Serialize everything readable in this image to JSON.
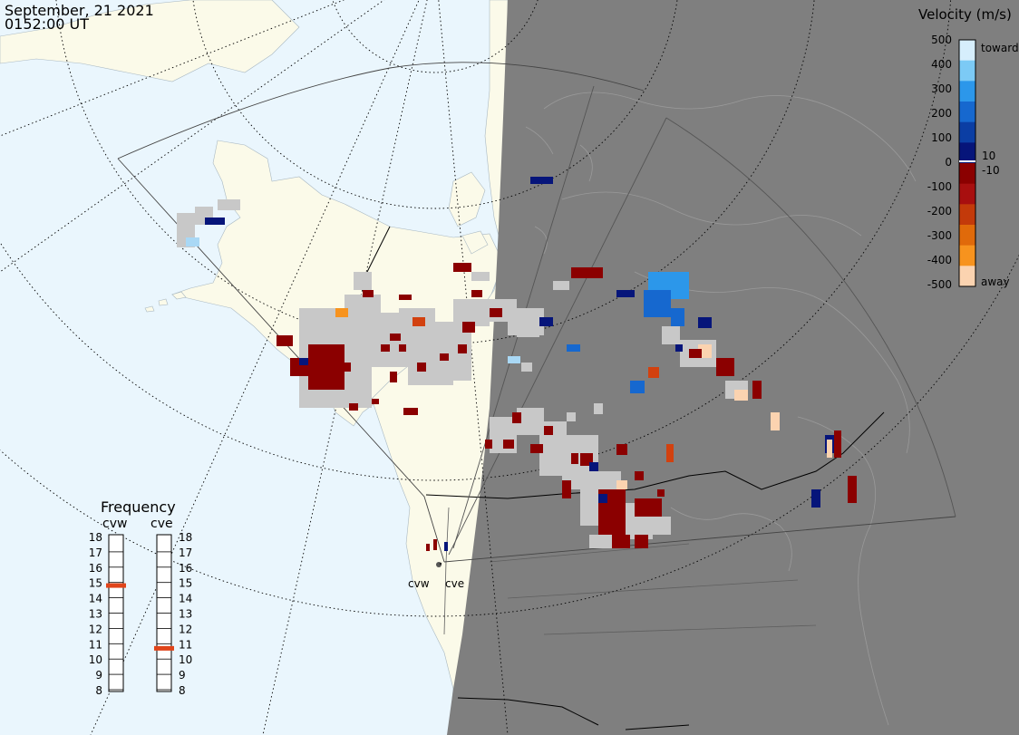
{
  "header": {
    "date": "September, 21 2021",
    "time": "0152:00 UT"
  },
  "colorbar": {
    "title": "Velocity (m/s)",
    "ticks": [
      "500",
      "400",
      "300",
      "200",
      "100",
      "0",
      "-100",
      "-200",
      "-300",
      "-400",
      "-500"
    ],
    "label_toward": "toward",
    "label_away": "away",
    "label_pos10": "10",
    "label_neg10": "-10",
    "colors": [
      "#d6eefc",
      "#7ccaf5",
      "#2c97ea",
      "#1668cf",
      "#0b3ea4",
      "#06157a",
      "#8b0000",
      "#a80f0f",
      "#c33a0a",
      "#e06a0a",
      "#f7931e",
      "#fbd3b0"
    ]
  },
  "frequency": {
    "title": "Frequency",
    "radar_left": "cvw",
    "radar_right": "cve",
    "scale": [
      "18",
      "17",
      "16",
      "15",
      "14",
      "13",
      "12",
      "11",
      "10",
      "9",
      "8"
    ],
    "cvw_mhz": 14.8,
    "cve_mhz": 10.7,
    "marker_color": "#e0441a"
  },
  "radar_labels": {
    "cvw": "cvw",
    "cve": "cve"
  },
  "map_colors": {
    "ocean": "#eaf6fd",
    "land": "#fbfae9",
    "night": "#7f7f7f",
    "scatter": "#c8c8c8"
  }
}
